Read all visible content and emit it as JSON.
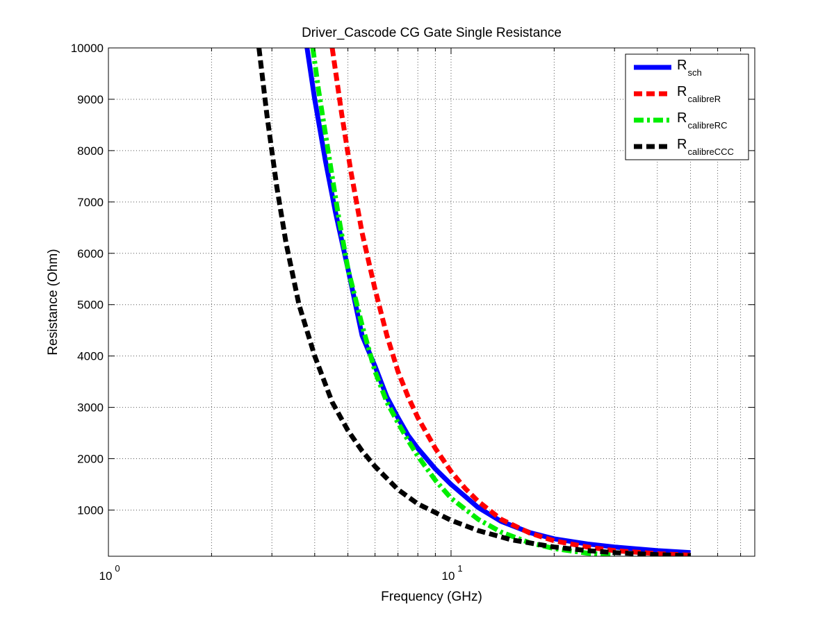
{
  "chart_data": {
    "type": "line",
    "title": "Driver_Cascode CG Gate Single Resistance",
    "xlabel": "Frequency (GHz)",
    "ylabel": "Resistance (Ohm)",
    "x_scale": "log",
    "xlim": [
      1,
      77
    ],
    "ylim": [
      100,
      10000
    ],
    "grid": true,
    "legend_position": "top-right",
    "x_ticks": [
      {
        "value": 1,
        "base": "10",
        "exp": "0"
      },
      {
        "value": 10,
        "base": "10",
        "exp": "1"
      }
    ],
    "y_ticks": [
      1000,
      2000,
      3000,
      4000,
      5000,
      6000,
      7000,
      8000,
      9000,
      10000
    ],
    "series": [
      {
        "name": "R",
        "sub": "sch",
        "color": "#0000ff",
        "style": "solid",
        "x": [
          3.8,
          4.0,
          4.3,
          4.6,
          5.0,
          5.5,
          6.0,
          6.5,
          7.0,
          7.5,
          8.0,
          9.0,
          10.0,
          12.0,
          14.0,
          17.0,
          20.0,
          25.0,
          30.0,
          40.0,
          50.0
        ],
        "y": [
          10000,
          9000,
          7800,
          6800,
          5700,
          4400,
          3800,
          3200,
          2800,
          2450,
          2200,
          1800,
          1500,
          1050,
          780,
          560,
          440,
          340,
          280,
          210,
          170
        ]
      },
      {
        "name": "R",
        "sub": "calibreR",
        "color": "#ff0000",
        "style": "dashed",
        "x": [
          4.5,
          4.8,
          5.1,
          5.5,
          6.0,
          6.5,
          7.0,
          7.5,
          8.0,
          9.0,
          10.0,
          11.0,
          12.0,
          14.0,
          17.0,
          20.0,
          25.0,
          30.0,
          40.0,
          50.0
        ],
        "y": [
          10000,
          8700,
          7600,
          6400,
          5300,
          4400,
          3700,
          3200,
          2800,
          2200,
          1750,
          1420,
          1170,
          820,
          550,
          400,
          280,
          210,
          150,
          120
        ]
      },
      {
        "name": "R",
        "sub": "calibreRC",
        "color": "#00ee00",
        "style": "dashdot",
        "x": [
          3.95,
          4.1,
          4.4,
          4.7,
          5.0,
          5.5,
          6.0,
          6.5,
          7.0,
          7.5,
          8.0,
          9.0,
          10.0,
          12.0,
          14.0,
          17.0,
          20.0,
          25.0,
          30.0
        ],
        "y": [
          10000,
          9200,
          7900,
          6700,
          5700,
          4600,
          3700,
          3100,
          2700,
          2350,
          2050,
          1580,
          1230,
          820,
          570,
          360,
          250,
          160,
          120
        ]
      },
      {
        "name": "R",
        "sub": "calibreCCC",
        "color": "#000000",
        "style": "dashed",
        "x": [
          2.75,
          2.9,
          3.1,
          3.3,
          3.6,
          4.0,
          4.5,
          5.0,
          5.5,
          6.0,
          7.0,
          8.0,
          10.0,
          12.0,
          15.0,
          20.0,
          25.0,
          30.0,
          40.0,
          50.0
        ],
        "y": [
          10000,
          8700,
          7300,
          6200,
          5000,
          4000,
          3100,
          2550,
          2150,
          1850,
          1400,
          1120,
          800,
          600,
          420,
          280,
          210,
          170,
          130,
          110
        ]
      }
    ]
  }
}
